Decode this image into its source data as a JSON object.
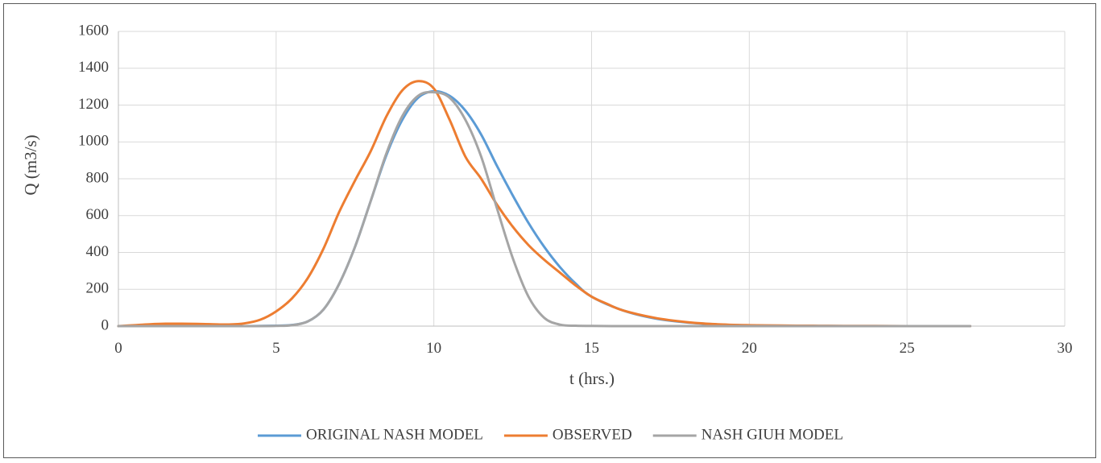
{
  "chart_data": {
    "type": "line",
    "title": "",
    "xlabel": "t (hrs.)",
    "ylabel": "Q (m3/s)",
    "xlim": [
      0,
      30
    ],
    "ylim": [
      0,
      1600
    ],
    "xticks": [
      0,
      5,
      10,
      15,
      20,
      25,
      30
    ],
    "yticks": [
      0,
      200,
      400,
      600,
      800,
      1000,
      1200,
      1400,
      1600
    ],
    "grid": true,
    "legend_position": "bottom",
    "series": [
      {
        "name": "ORIGINAL NASH MODEL",
        "color": "#5b9bd5",
        "x": [
          0,
          1,
          2,
          3,
          4,
          5,
          5.5,
          6,
          6.5,
          7,
          7.5,
          8,
          8.5,
          9,
          9.5,
          10,
          10.5,
          11,
          11.5,
          12,
          12.5,
          13,
          13.5,
          14,
          14.5,
          15,
          16,
          17,
          18,
          19,
          20,
          21,
          22,
          23,
          24,
          25,
          26,
          27
        ],
        "y": [
          0,
          0,
          0,
          0,
          0,
          2,
          6,
          25,
          90,
          230,
          430,
          680,
          930,
          1120,
          1240,
          1275,
          1250,
          1170,
          1040,
          870,
          710,
          560,
          430,
          320,
          230,
          160,
          85,
          42,
          20,
          9,
          4,
          2,
          1,
          0,
          0,
          0,
          0,
          0
        ]
      },
      {
        "name": "OBSERVED",
        "color": "#ed7d31",
        "x": [
          0,
          0.5,
          1,
          1.5,
          2,
          2.5,
          3,
          3.5,
          4,
          4.5,
          5,
          5.5,
          6,
          6.5,
          7,
          7.5,
          8,
          8.5,
          9,
          9.5,
          10,
          10.5,
          11,
          11.5,
          12,
          12.5,
          13,
          13.5,
          14,
          14.5,
          15,
          15.5,
          16,
          17,
          18,
          19,
          20,
          21,
          22,
          23,
          24,
          25,
          26,
          27
        ],
        "y": [
          0,
          5,
          10,
          13,
          13,
          12,
          10,
          9,
          15,
          35,
          80,
          150,
          260,
          420,
          620,
          790,
          950,
          1140,
          1280,
          1330,
          1290,
          1120,
          920,
          800,
          660,
          540,
          440,
          360,
          290,
          220,
          160,
          120,
          85,
          45,
          22,
          10,
          5,
          3,
          2,
          1,
          1,
          0,
          0,
          0
        ]
      },
      {
        "name": "NASH GIUH MODEL",
        "color": "#a5a5a5",
        "x": [
          0,
          1,
          2,
          3,
          4,
          5,
          5.5,
          6,
          6.5,
          7,
          7.5,
          8,
          8.5,
          9,
          9.5,
          10,
          10.5,
          11,
          11.5,
          12,
          12.5,
          13,
          13.5,
          14,
          14.5,
          15,
          16,
          17,
          18,
          19,
          20,
          21,
          22,
          23,
          24,
          25,
          26,
          27
        ],
        "y": [
          0,
          0,
          0,
          0,
          0,
          1,
          5,
          25,
          90,
          230,
          430,
          680,
          940,
          1140,
          1250,
          1270,
          1240,
          1120,
          920,
          640,
          370,
          160,
          45,
          8,
          2,
          1,
          0,
          0,
          0,
          0,
          0,
          0,
          0,
          0,
          0,
          0,
          0,
          0
        ]
      }
    ]
  }
}
